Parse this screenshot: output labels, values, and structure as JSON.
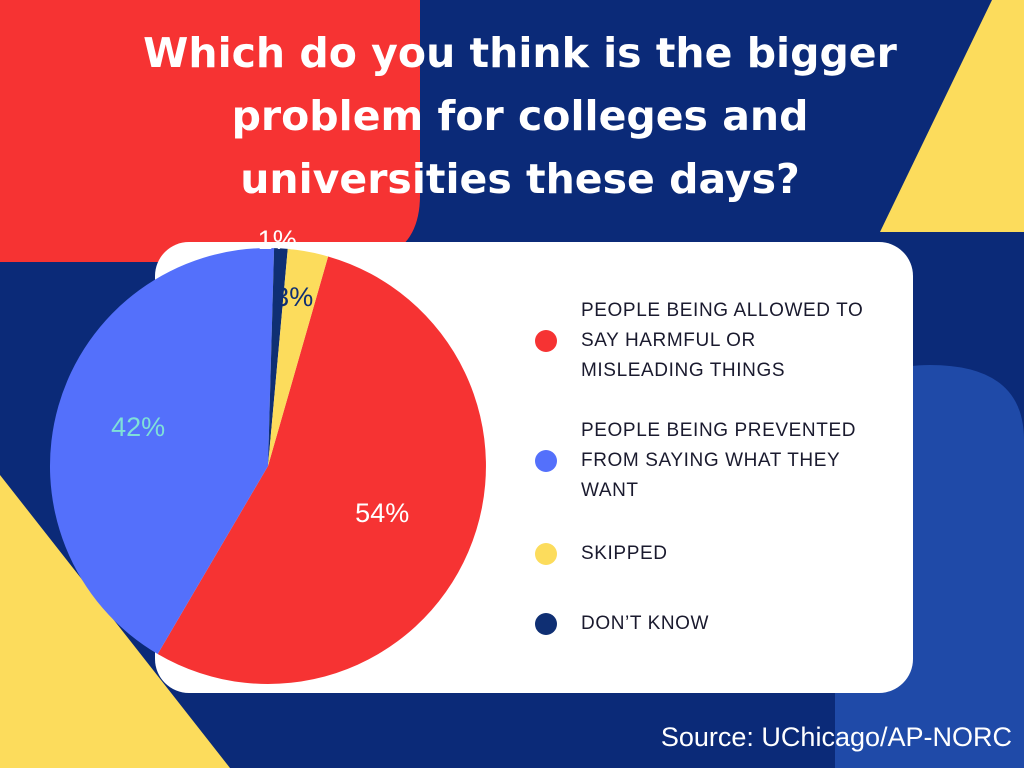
{
  "title": "Which do you think is the bigger problem for colleges and universities these days?",
  "source": "Source: UChicago/AP-NORC",
  "colors": {
    "background_navy": "#0b2a78",
    "shape_red": "#f63333",
    "shape_yellow": "#fcdc5c",
    "shape_blue": "#1f4aa8",
    "card": "#ffffff"
  },
  "chart_data": {
    "type": "pie",
    "title": "Which do you think is the bigger problem for colleges and universities these days?",
    "slices": [
      {
        "label": "PEOPLE BEING ALLOWED TO SAY HARMFUL OR MISLEADING THINGS",
        "value": 54,
        "value_label": "54%",
        "color": "#f63333",
        "label_color": "#ffffff"
      },
      {
        "label": "PEOPLE BEING PREVENTED FROM SAYING WHAT THEY WANT",
        "value": 42,
        "value_label": "42%",
        "color": "#5470fb",
        "label_color": "#7fe0d8"
      },
      {
        "label": "DON’T KNOW",
        "value": 1,
        "value_label": "1%",
        "color": "#0f2f73",
        "label_color": "#ffffff"
      },
      {
        "label": "SKIPPED",
        "value": 3,
        "value_label": "3%",
        "color": "#fcdc5c",
        "label_color": "#0f2f73"
      }
    ],
    "legend": [
      {
        "label": "PEOPLE BEING ALLOWED TO SAY HARMFUL OR MISLEADING THINGS",
        "color": "#f63333"
      },
      {
        "label": "PEOPLE BEING PREVENTED FROM SAYING WHAT THEY WANT",
        "color": "#5470fb"
      },
      {
        "label": "SKIPPED",
        "color": "#fcdc5c"
      },
      {
        "label": "DON’T KNOW",
        "color": "#0f2f73"
      }
    ],
    "legend_position": "right"
  }
}
